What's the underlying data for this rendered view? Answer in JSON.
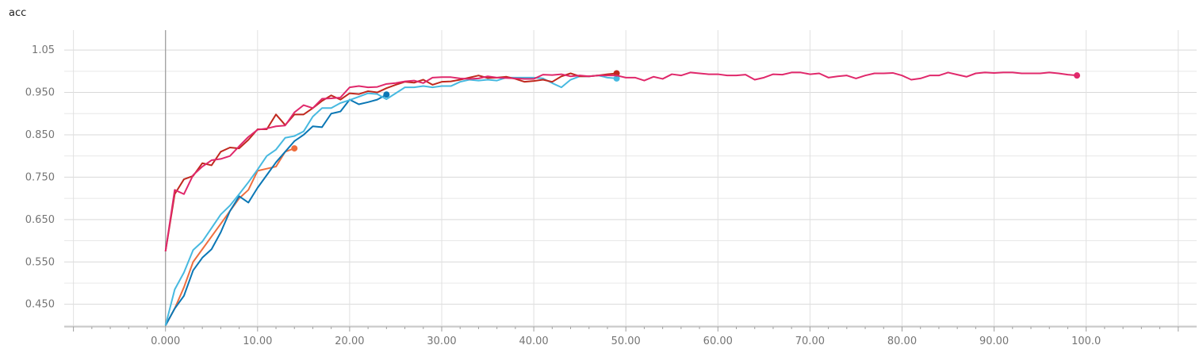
{
  "chart_data": {
    "type": "line",
    "title": "acc",
    "xlabel": "",
    "ylabel": "",
    "xlim": [
      -11,
      112
    ],
    "ylim": [
      0.397,
      1.097
    ],
    "x_ticks": [
      0,
      10,
      20,
      30,
      40,
      50,
      60,
      70,
      80,
      90,
      100
    ],
    "x_tick_labels": [
      "0.000",
      "10.00",
      "20.00",
      "30.00",
      "40.00",
      "50.00",
      "60.00",
      "70.00",
      "80.00",
      "90.00",
      "100.0"
    ],
    "y_ticks": [
      0.45,
      0.55,
      0.65,
      0.75,
      0.85,
      0.95,
      1.05
    ],
    "y_tick_labels": [
      "0.450",
      "0.550",
      "0.650",
      "0.750",
      "0.850",
      "0.950",
      "1.05"
    ],
    "grid": true,
    "colors": [
      "#ee6e3f",
      "#0b77b5",
      "#47b9e0",
      "#c0281e",
      "#e0286b"
    ],
    "series": [
      {
        "color": "#ee6e3f",
        "x": [
          0,
          1,
          2,
          3,
          4,
          5,
          6,
          7,
          8,
          9,
          10,
          11,
          12,
          13,
          14
        ],
        "values": [
          0.4,
          0.44,
          0.49,
          0.55,
          0.58,
          0.61,
          0.64,
          0.67,
          0.7,
          0.72,
          0.765,
          0.77,
          0.775,
          0.81,
          0.818
        ]
      },
      {
        "color": "#0b77b5",
        "x": [
          0,
          1,
          2,
          3,
          4,
          5,
          6,
          7,
          8,
          9,
          10,
          11,
          12,
          13,
          14,
          15,
          16,
          17,
          18,
          19,
          20,
          21,
          22,
          23,
          24
        ],
        "values": [
          0.4,
          0.44,
          0.47,
          0.53,
          0.56,
          0.58,
          0.62,
          0.67,
          0.705,
          0.69,
          0.725,
          0.755,
          0.785,
          0.81,
          0.835,
          0.85,
          0.87,
          0.868,
          0.9,
          0.905,
          0.933,
          0.922,
          0.927,
          0.933,
          0.945
        ]
      },
      {
        "color": "#47b9e0",
        "x": [
          0,
          1,
          2,
          3,
          4,
          5,
          6,
          7,
          8,
          9,
          10,
          11,
          12,
          13,
          14,
          15,
          16,
          17,
          18,
          19,
          20,
          21,
          22,
          23,
          24,
          25,
          26,
          27,
          28,
          29,
          30,
          31,
          32,
          33,
          34,
          35,
          36,
          37,
          38,
          39,
          40,
          41,
          42,
          43,
          44,
          45,
          46,
          47,
          48,
          49
        ],
        "values": [
          0.4,
          0.485,
          0.525,
          0.578,
          0.598,
          0.63,
          0.662,
          0.683,
          0.71,
          0.738,
          0.768,
          0.8,
          0.815,
          0.843,
          0.847,
          0.858,
          0.893,
          0.913,
          0.913,
          0.925,
          0.932,
          0.94,
          0.948,
          0.946,
          0.934,
          0.948,
          0.962,
          0.962,
          0.965,
          0.962,
          0.965,
          0.965,
          0.975,
          0.98,
          0.978,
          0.98,
          0.978,
          0.985,
          0.985,
          0.985,
          0.985,
          0.983,
          0.972,
          0.962,
          0.98,
          0.988,
          0.988,
          0.99,
          0.985,
          0.983
        ]
      },
      {
        "color": "#c0281e",
        "x": [
          0,
          1,
          2,
          3,
          4,
          5,
          6,
          7,
          8,
          9,
          10,
          11,
          12,
          13,
          14,
          15,
          16,
          17,
          18,
          19,
          20,
          21,
          22,
          23,
          24,
          25,
          26,
          27,
          28,
          29,
          30,
          31,
          32,
          33,
          34,
          35,
          36,
          37,
          38,
          39,
          40,
          41,
          42,
          43,
          44,
          45,
          46,
          47,
          48,
          49
        ],
        "values": [
          0.575,
          0.71,
          0.745,
          0.753,
          0.783,
          0.778,
          0.81,
          0.82,
          0.818,
          0.838,
          0.863,
          0.863,
          0.898,
          0.873,
          0.898,
          0.898,
          0.913,
          0.93,
          0.943,
          0.933,
          0.948,
          0.946,
          0.953,
          0.95,
          0.96,
          0.968,
          0.975,
          0.973,
          0.98,
          0.968,
          0.975,
          0.976,
          0.98,
          0.985,
          0.99,
          0.984,
          0.985,
          0.987,
          0.982,
          0.975,
          0.977,
          0.98,
          0.975,
          0.988,
          0.995,
          0.988,
          0.988,
          0.99,
          0.993,
          0.995
        ]
      },
      {
        "color": "#e0286b",
        "x": [
          0,
          1,
          2,
          3,
          4,
          5,
          6,
          7,
          8,
          9,
          10,
          11,
          12,
          13,
          14,
          15,
          16,
          17,
          18,
          19,
          20,
          21,
          22,
          23,
          24,
          25,
          26,
          27,
          28,
          29,
          30,
          31,
          32,
          33,
          34,
          35,
          36,
          37,
          38,
          39,
          40,
          41,
          42,
          43,
          44,
          45,
          46,
          47,
          48,
          49,
          50,
          51,
          52,
          53,
          54,
          55,
          56,
          57,
          58,
          59,
          60,
          61,
          62,
          63,
          64,
          65,
          66,
          67,
          68,
          69,
          70,
          71,
          72,
          73,
          74,
          75,
          76,
          77,
          78,
          79,
          80,
          81,
          82,
          83,
          84,
          85,
          86,
          87,
          88,
          89,
          90,
          91,
          92,
          93,
          94,
          95,
          96,
          97,
          98,
          99
        ],
        "values": [
          0.575,
          0.72,
          0.71,
          0.755,
          0.775,
          0.79,
          0.793,
          0.8,
          0.823,
          0.845,
          0.862,
          0.865,
          0.87,
          0.872,
          0.903,
          0.92,
          0.913,
          0.935,
          0.936,
          0.938,
          0.962,
          0.965,
          0.962,
          0.963,
          0.97,
          0.972,
          0.976,
          0.978,
          0.972,
          0.985,
          0.986,
          0.986,
          0.983,
          0.982,
          0.983,
          0.988,
          0.985,
          0.984,
          0.983,
          0.982,
          0.982,
          0.992,
          0.991,
          0.993,
          0.988,
          0.99,
          0.988,
          0.99,
          0.99,
          0.99,
          0.985,
          0.985,
          0.978,
          0.987,
          0.982,
          0.993,
          0.99,
          0.997,
          0.995,
          0.993,
          0.993,
          0.99,
          0.99,
          0.992,
          0.98,
          0.985,
          0.993,
          0.992,
          0.997,
          0.997,
          0.993,
          0.995,
          0.985,
          0.988,
          0.99,
          0.983,
          0.99,
          0.995,
          0.995,
          0.996,
          0.99,
          0.98,
          0.983,
          0.99,
          0.99,
          0.997,
          0.992,
          0.987,
          0.995,
          0.997,
          0.996,
          0.997,
          0.997,
          0.995,
          0.995,
          0.995,
          0.997,
          0.995,
          0.992,
          0.99
        ]
      }
    ]
  }
}
